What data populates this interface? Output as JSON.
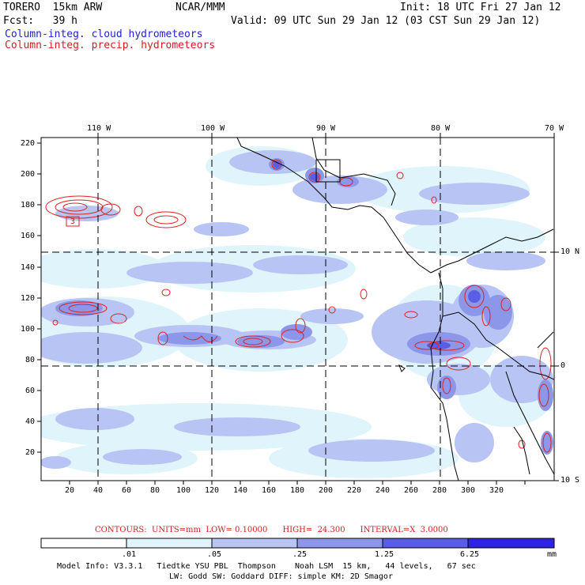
{
  "header": {
    "model": "TORERO  15km ARW",
    "org": "NCAR/MMM",
    "init": "Init: 18 UTC Fri 27 Jan 12",
    "fcst": "Fcst:   39 h",
    "valid": "Valid: 09 UTC Sun 29 Jan 12 (03 CST Sun 29 Jan 12)",
    "field1": "Column-integ. cloud hydrometeors",
    "field2": "Column-integ. precip. hydrometeors"
  },
  "map": {
    "top_lon_labels": [
      "110 W",
      "100 W",
      "90 W",
      "80 W",
      "70 W"
    ],
    "right_lat_labels": [
      "10 N",
      "0",
      "10 S"
    ],
    "y_ticks": [
      "220",
      "200",
      "180",
      "160",
      "140",
      "120",
      "100",
      "80",
      "60",
      "40",
      "20"
    ],
    "x_ticks": [
      "20",
      "40",
      "60",
      "80",
      "100",
      "120",
      "140",
      "160",
      "180",
      "200",
      "220",
      "240",
      "260",
      "280",
      "300",
      "320"
    ],
    "contour_label": "3"
  },
  "contour_info": {
    "text": "CONTOURS:  UNITS=mm  LOW= 0.10000      HIGH=  24.300      INTERVAL=X  3.0000"
  },
  "colorbar": {
    "labels": [
      ".01",
      ".05",
      ".25",
      "1.25",
      "6.25",
      "mm"
    ],
    "colors": [
      "#ffffff",
      "#dff4fb",
      "#b8c4f4",
      "#8c97ea",
      "#5a5ee6",
      "#2e22e4"
    ]
  },
  "footer": {
    "line1": "Model Info: V3.3.1   Tiedtke YSU PBL  Thompson    Noah LSM  15 km,   44 levels,   67 sec",
    "line2": "LW: Godd SW: Goddard DIFF: simple KM: 2D Smagor"
  }
}
